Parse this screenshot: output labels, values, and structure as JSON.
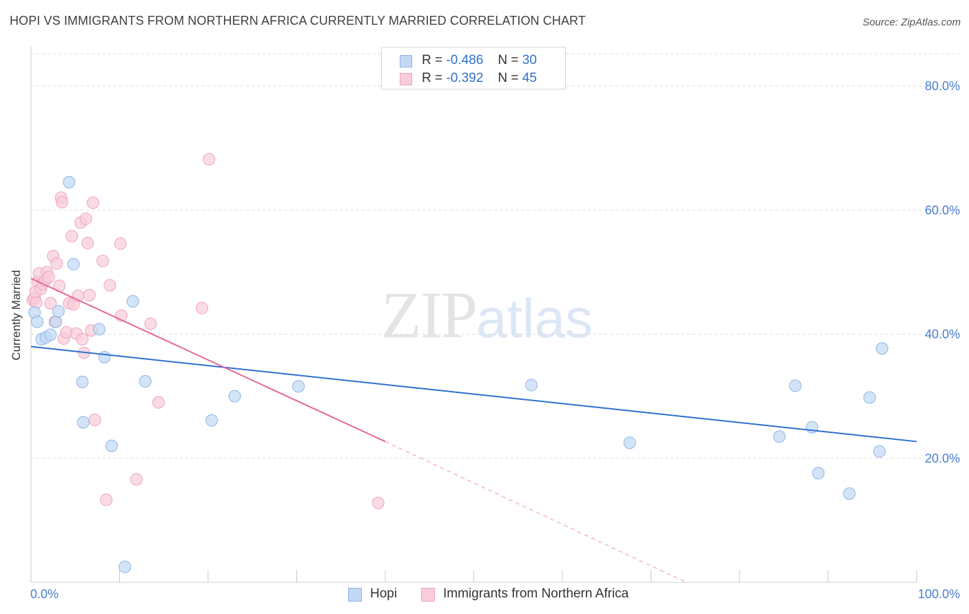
{
  "header": {
    "title": "HOPI VS IMMIGRANTS FROM NORTHERN AFRICA CURRENTLY MARRIED CORRELATION CHART",
    "source": "Source: ZipAtlas.com"
  },
  "watermark": {
    "zip": "ZIP",
    "atlas": "atlas"
  },
  "stats": [
    {
      "r_label": "R =",
      "r_value": "-0.486",
      "n_label": "N =",
      "n_value": "30",
      "color": "#a9c8f0"
    },
    {
      "r_label": "R =",
      "r_value": "-0.392",
      "n_label": "N =",
      "n_value": "45",
      "color": "#f5b8ca"
    }
  ],
  "legend": [
    {
      "label": "Hopi",
      "color": "#a9c8f0"
    },
    {
      "label": "Immigrants from Northern Africa",
      "color": "#f5b8ca"
    }
  ],
  "colors": {
    "hopi_fill": "#c2d8f4",
    "hopi_stroke": "#8fb5e6",
    "hopi_line": "#2f6fcf",
    "ina_fill": "#f8ccd9",
    "ina_stroke": "#eea5bd",
    "ina_line": "#e5679a",
    "tick_label": "#4a7ecf",
    "grid": "#dedede"
  },
  "chart_data": {
    "type": "scatter",
    "title": "HOPI VS IMMIGRANTS FROM NORTHERN AFRICA CURRENTLY MARRIED CORRELATION CHART",
    "xlabel": "",
    "ylabel": "Currently Married",
    "xlim": [
      0,
      100
    ],
    "ylim": [
      0,
      85
    ],
    "x_tick_labels": [
      "0.0%",
      "100.0%"
    ],
    "y_ticks": [
      20,
      40,
      60,
      80
    ],
    "y_tick_labels": [
      "20.0%",
      "40.0%",
      "60.0%",
      "80.0%"
    ],
    "grid": true,
    "series": [
      {
        "name": "Hopi",
        "points": [
          [
            0.4,
            43.5
          ],
          [
            0.7,
            42.0
          ],
          [
            1.2,
            39.2
          ],
          [
            1.7,
            39.5
          ],
          [
            2.2,
            39.9
          ],
          [
            2.8,
            42.0
          ],
          [
            3.1,
            43.7
          ],
          [
            4.3,
            64.5
          ],
          [
            4.8,
            51.3
          ],
          [
            5.8,
            32.3
          ],
          [
            5.9,
            25.8
          ],
          [
            7.7,
            40.8
          ],
          [
            8.3,
            36.3
          ],
          [
            9.1,
            22.0
          ],
          [
            10.6,
            2.5
          ],
          [
            11.5,
            45.3
          ],
          [
            12.9,
            32.4
          ],
          [
            20.4,
            26.1
          ],
          [
            23.0,
            30.0
          ],
          [
            30.2,
            31.6
          ],
          [
            56.5,
            31.8
          ],
          [
            67.6,
            22.5
          ],
          [
            84.5,
            23.5
          ],
          [
            86.3,
            31.7
          ],
          [
            88.2,
            25.0
          ],
          [
            88.9,
            17.6
          ],
          [
            92.4,
            14.3
          ],
          [
            94.7,
            29.8
          ],
          [
            95.8,
            21.1
          ],
          [
            96.1,
            37.7
          ]
        ],
        "trend": {
          "x": [
            0,
            100
          ],
          "y": [
            38.0,
            22.7
          ]
        }
      },
      {
        "name": "Immigrants from Northern Africa",
        "points": [
          [
            0.2,
            45.5
          ],
          [
            0.4,
            45.8
          ],
          [
            0.5,
            46.8
          ],
          [
            0.6,
            45.1
          ],
          [
            0.8,
            48.4
          ],
          [
            0.9,
            49.8
          ],
          [
            1.1,
            47.3
          ],
          [
            1.3,
            48.1
          ],
          [
            1.6,
            48.6
          ],
          [
            1.8,
            50.0
          ],
          [
            2.0,
            49.2
          ],
          [
            2.2,
            45.0
          ],
          [
            2.5,
            52.6
          ],
          [
            2.7,
            42.0
          ],
          [
            2.9,
            51.4
          ],
          [
            3.2,
            47.8
          ],
          [
            3.4,
            62.0
          ],
          [
            3.5,
            61.3
          ],
          [
            3.7,
            39.3
          ],
          [
            4.0,
            40.3
          ],
          [
            4.3,
            45.0
          ],
          [
            4.6,
            55.8
          ],
          [
            4.8,
            44.8
          ],
          [
            5.1,
            40.1
          ],
          [
            5.3,
            46.2
          ],
          [
            5.6,
            58.0
          ],
          [
            5.8,
            39.2
          ],
          [
            6.0,
            37.0
          ],
          [
            6.2,
            58.6
          ],
          [
            6.4,
            54.7
          ],
          [
            6.6,
            46.3
          ],
          [
            6.8,
            40.6
          ],
          [
            7.0,
            61.2
          ],
          [
            7.2,
            26.2
          ],
          [
            8.1,
            51.8
          ],
          [
            8.5,
            13.3
          ],
          [
            8.9,
            47.9
          ],
          [
            10.1,
            54.6
          ],
          [
            10.2,
            43.0
          ],
          [
            11.9,
            16.6
          ],
          [
            13.5,
            41.7
          ],
          [
            14.4,
            29.0
          ],
          [
            19.3,
            44.2
          ],
          [
            20.1,
            68.2
          ],
          [
            39.2,
            12.8
          ]
        ],
        "trend": {
          "x": [
            0,
            40
          ],
          "y": [
            49.0,
            22.7
          ]
        },
        "trend_extension": {
          "x": [
            40,
            74
          ],
          "y": [
            22.7,
            0
          ]
        }
      }
    ]
  }
}
